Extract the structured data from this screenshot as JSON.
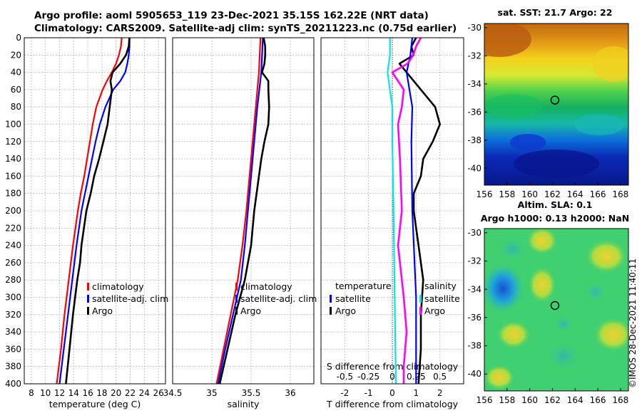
{
  "title": {
    "line1": "Argo profile: aoml 5905653_119 23-Dec-2021 35.15S 162.22E (NRT data)",
    "line2": "Climatology: CARS2009. Satellite-adj clim: synTS_20211223.nc (0.75d earlier)"
  },
  "timestamp": "©IMOS 28-Dec-2021 11:40:11",
  "colors": {
    "climatology": "#ff0000",
    "satellite": "#0000ff",
    "argo": "#000000",
    "temp_diff": "#00e5ee",
    "sal_diff": "#ff00ff",
    "grid": "#b0b0c8"
  },
  "chart_data": [
    {
      "type": "line",
      "id": "temperature",
      "xlabel": "temperature (deg C)",
      "ylabel": "",
      "xlim": [
        7,
        27
      ],
      "ylim": [
        400,
        0
      ],
      "xticks": [
        "8",
        "10",
        "12",
        "14",
        "16",
        "18",
        "20",
        "22",
        "24",
        "26"
      ],
      "xtick_values": [
        8,
        10,
        12,
        14,
        16,
        18,
        20,
        22,
        24,
        26
      ],
      "yticks": [
        "0",
        "20",
        "40",
        "60",
        "80",
        "100",
        "120",
        "140",
        "160",
        "180",
        "200",
        "220",
        "240",
        "260",
        "280",
        "300",
        "320",
        "340",
        "360",
        "380",
        "400"
      ],
      "ytick_values": [
        0,
        20,
        40,
        60,
        80,
        100,
        120,
        140,
        160,
        180,
        200,
        220,
        240,
        260,
        280,
        300,
        320,
        340,
        360,
        380,
        400
      ],
      "legend": [
        "climatology",
        "satellite-adj. clim",
        "Argo"
      ],
      "legend_position": "lower-middle",
      "series": [
        {
          "name": "climatology",
          "depth": [
            0,
            10,
            20,
            30,
            40,
            50,
            60,
            80,
            100,
            120,
            140,
            160,
            180,
            200,
            240,
            280,
            320,
            360,
            400
          ],
          "values": [
            20.8,
            20.7,
            20.4,
            20.0,
            19.4,
            18.7,
            18.1,
            17.2,
            16.7,
            16.3,
            15.9,
            15.5,
            15.0,
            14.6,
            13.9,
            13.3,
            12.7,
            12.2,
            11.6
          ]
        },
        {
          "name": "satellite-adj. clim",
          "depth": [
            0,
            10,
            20,
            30,
            40,
            50,
            60,
            80,
            100,
            120,
            140,
            160,
            180,
            200,
            240,
            280,
            320,
            360,
            400
          ],
          "values": [
            21.9,
            21.9,
            21.8,
            21.6,
            21.3,
            20.6,
            19.6,
            18.5,
            17.7,
            17.1,
            16.6,
            16.1,
            15.6,
            15.1,
            14.4,
            13.8,
            13.2,
            12.6,
            12.0
          ]
        },
        {
          "name": "Argo",
          "depth": [
            0,
            10,
            20,
            30,
            40,
            50,
            60,
            80,
            100,
            120,
            140,
            160,
            180,
            200,
            240,
            260,
            280,
            320,
            360,
            400
          ],
          "values": [
            21.9,
            21.8,
            21.4,
            20.6,
            19.5,
            19.2,
            19.4,
            19.1,
            18.8,
            18.2,
            17.6,
            16.9,
            16.4,
            15.8,
            15.1,
            14.9,
            14.5,
            13.9,
            13.4,
            12.9
          ]
        }
      ]
    },
    {
      "type": "line",
      "id": "salinity",
      "xlabel": "salinity",
      "xlim": [
        34.5,
        36.3
      ],
      "ylim": [
        400,
        0
      ],
      "xticks": [
        "34.5",
        "35",
        "35.5",
        "36"
      ],
      "xtick_values": [
        34.5,
        35,
        35.5,
        36
      ],
      "legend": [
        "climatology",
        "satellite-adj. clim",
        "Argo"
      ],
      "legend_position": "lower-middle",
      "series": [
        {
          "name": "climatology",
          "depth": [
            0,
            40,
            80,
            120,
            160,
            200,
            240,
            280,
            320,
            360,
            400
          ],
          "values": [
            35.62,
            35.6,
            35.56,
            35.52,
            35.48,
            35.44,
            35.39,
            35.33,
            35.24,
            35.15,
            35.06
          ]
        },
        {
          "name": "satellite-adj. clim",
          "depth": [
            0,
            40,
            80,
            120,
            160,
            200,
            240,
            280,
            320,
            360,
            400
          ],
          "values": [
            35.65,
            35.63,
            35.58,
            35.54,
            35.5,
            35.46,
            35.42,
            35.37,
            35.27,
            35.17,
            35.08
          ]
        },
        {
          "name": "Argo",
          "depth": [
            0,
            10,
            20,
            30,
            40,
            50,
            60,
            80,
            100,
            120,
            140,
            160,
            180,
            200,
            240,
            280,
            320,
            360,
            400
          ],
          "values": [
            35.66,
            35.68,
            35.68,
            35.67,
            35.64,
            35.72,
            35.72,
            35.73,
            35.72,
            35.67,
            35.63,
            35.6,
            35.57,
            35.54,
            35.5,
            35.42,
            35.3,
            35.2,
            35.1
          ]
        }
      ]
    },
    {
      "type": "line",
      "id": "differences",
      "xlabel": "T difference from climatology",
      "xlabel_top": "S difference from climatology",
      "xlim": [
        -3,
        3
      ],
      "ylim": [
        400,
        0
      ],
      "xticks": [
        "-2",
        "-1",
        "0",
        "1",
        "2"
      ],
      "xtick_values": [
        -2,
        -1,
        0,
        1,
        2
      ],
      "xticks_top": [
        "-0.5",
        "-0.25",
        "0",
        "0.25",
        "0.5"
      ],
      "xtick_values_top": [
        -0.5,
        -0.25,
        0,
        0.25,
        0.5
      ],
      "legend_left": {
        "title": "temperature",
        "items": [
          "satellite",
          "Argo"
        ]
      },
      "legend_right": {
        "title": "salinity",
        "items": [
          "satellite",
          "Argo"
        ]
      },
      "series": [
        {
          "name": "temperature satellite",
          "depth": [
            0,
            20,
            40,
            80,
            120,
            200,
            300,
            400
          ],
          "values": [
            -0.1,
            -0.1,
            -0.2,
            0.0,
            0.0,
            0.05,
            0.1,
            0.15
          ]
        },
        {
          "name": "temperature Argo",
          "depth": [
            0,
            10,
            20,
            30,
            40,
            60,
            80,
            100,
            120,
            140,
            160,
            180,
            200,
            240,
            280,
            320,
            360,
            400
          ],
          "values": [
            1.0,
            0.8,
            0.9,
            0.3,
            0.6,
            1.2,
            1.8,
            2.0,
            1.7,
            1.3,
            1.2,
            0.9,
            0.9,
            1.1,
            1.3,
            1.2,
            1.2,
            1.1
          ]
        },
        {
          "name": "salinity satellite",
          "depth": [
            0,
            20,
            40,
            80,
            120,
            200,
            300,
            400
          ],
          "values": [
            0.21,
            0.19,
            0.15,
            0.21,
            0.2,
            0.21,
            0.25,
            0.25
          ]
        },
        {
          "name": "salinity Argo",
          "depth": [
            0,
            10,
            20,
            30,
            40,
            60,
            80,
            100,
            140,
            200,
            240,
            260,
            300,
            340,
            380,
            400
          ],
          "values": [
            0.3,
            0.25,
            0.22,
            0.16,
            0.0,
            0.12,
            0.1,
            0.06,
            0.08,
            0.1,
            0.06,
            0.08,
            0.12,
            0.15,
            0.12,
            0.12
          ]
        }
      ]
    },
    {
      "type": "heatmap",
      "id": "sst_map",
      "title": "sat. SST: 21.7 Argo: 22",
      "xlim": [
        156,
        168.7
      ],
      "ylim": [
        -41.2,
        -29.7
      ],
      "xticks": [
        "156",
        "158",
        "160",
        "162",
        "164",
        "166",
        "168"
      ],
      "xtick_values": [
        156,
        158,
        160,
        162,
        164,
        166,
        168
      ],
      "yticks": [
        "-30",
        "-32",
        "-34",
        "-36",
        "-38",
        "-40"
      ],
      "ytick_values": [
        -30,
        -32,
        -34,
        -36,
        -38,
        -40
      ],
      "marker": {
        "lon": 162.22,
        "lat": -35.15
      }
    },
    {
      "type": "heatmap",
      "id": "sla_map",
      "title_line1": "Altim. SLA: 0.1",
      "title_line2": "Argo h1000: 0.13 h2000: NaN",
      "xlim": [
        156,
        168.7
      ],
      "ylim": [
        -41.2,
        -29.7
      ],
      "xticks": [
        "156",
        "158",
        "160",
        "162",
        "164",
        "166",
        "168"
      ],
      "xtick_values": [
        156,
        158,
        160,
        162,
        164,
        166,
        168
      ],
      "yticks": [
        "-30",
        "-32",
        "-34",
        "-36",
        "-38",
        "-40"
      ],
      "ytick_values": [
        -30,
        -32,
        -34,
        -36,
        -38,
        -40
      ],
      "marker": {
        "lon": 162.22,
        "lat": -35.15
      }
    }
  ]
}
